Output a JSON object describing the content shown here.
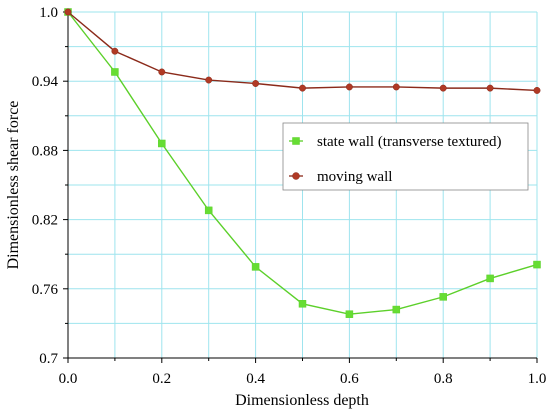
{
  "chart_data": {
    "type": "line",
    "xlabel": "Dimensionless depth",
    "ylabel": "Dimensionless shear force",
    "xlim": [
      0.0,
      1.0
    ],
    "ylim": [
      0.7,
      1.0
    ],
    "xticks": [
      "0.0",
      "0.2",
      "0.4",
      "0.6",
      "0.8",
      "1.0"
    ],
    "yticks": [
      "0.7",
      "0.76",
      "0.82",
      "0.88",
      "0.94",
      "1.0"
    ],
    "xtick_values": [
      0.0,
      0.2,
      0.4,
      0.6,
      0.8,
      1.0
    ],
    "ytick_values": [
      0.7,
      0.76,
      0.82,
      0.88,
      0.94,
      1.0
    ],
    "grid": true,
    "legend_position": "right",
    "x": [
      0.0,
      0.1,
      0.2,
      0.3,
      0.4,
      0.5,
      0.6,
      0.7,
      0.8,
      0.9,
      1.0
    ],
    "series": [
      {
        "name": "state wall (transverse textured)",
        "marker": "square",
        "color": "#5cd02a",
        "marker_color": "#66dd33",
        "values": [
          1.0,
          0.948,
          0.886,
          0.828,
          0.779,
          0.747,
          0.738,
          0.742,
          0.753,
          0.769,
          0.781
        ]
      },
      {
        "name": "moving wall",
        "marker": "circle",
        "color": "#8b2a1a",
        "marker_color": "#b03a25",
        "values": [
          1.0,
          0.966,
          0.948,
          0.941,
          0.938,
          0.934,
          0.935,
          0.935,
          0.934,
          0.934,
          0.932
        ]
      }
    ],
    "grid_color": "#9ee4ee"
  }
}
